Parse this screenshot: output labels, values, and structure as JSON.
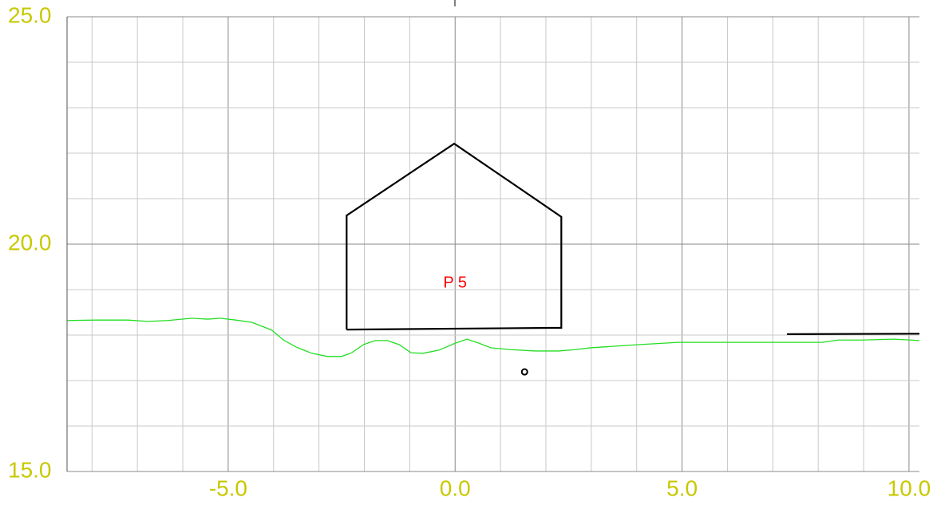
{
  "chart_data": {
    "type": "line",
    "xlim": [
      -8.55,
      10.23
    ],
    "ylim": [
      15,
      25
    ],
    "xticks": [
      {
        "value": -5,
        "label": "-5.0"
      },
      {
        "value": 0,
        "label": "0.0"
      },
      {
        "value": 5,
        "label": "5.0"
      },
      {
        "value": 10,
        "label": "10.0"
      }
    ],
    "yticks": [
      {
        "value": 15,
        "label": "15.0"
      },
      {
        "value": 20,
        "label": "20.0"
      },
      {
        "value": 25,
        "label": "25.0"
      }
    ],
    "xgrid": [
      -8,
      -7,
      -6,
      -5,
      -4,
      -3,
      -2,
      -1,
      0,
      1,
      2,
      3,
      4,
      5,
      6,
      7,
      8,
      9,
      10
    ],
    "ygrid": [
      15,
      16,
      17,
      18,
      19,
      20,
      21,
      22,
      23,
      24,
      25
    ],
    "grid": true,
    "series": [
      {
        "color": "#22dd22",
        "style": "line",
        "x": [
          -8.54,
          -7.91,
          -7.21,
          -6.77,
          -6.33,
          -5.8,
          -5.45,
          -5.18,
          -4.83,
          -4.48,
          -4.04,
          -3.78,
          -3.51,
          -3.16,
          -2.81,
          -2.5,
          -2.28,
          -2.02,
          -1.76,
          -1.49,
          -1.23,
          -0.97,
          -0.7,
          -0.35,
          0,
          0.26,
          0.53,
          0.79,
          1.23,
          1.76,
          2.28,
          2.64,
          2.99,
          4.04,
          4.92,
          6.68,
          8.08,
          8.44,
          8.96,
          9.67,
          10.23
        ],
        "values": [
          18.32,
          18.33,
          18.33,
          18.3,
          18.32,
          18.37,
          18.35,
          18.37,
          18.33,
          18.28,
          18.11,
          17.89,
          17.74,
          17.6,
          17.53,
          17.53,
          17.61,
          17.79,
          17.88,
          17.88,
          17.79,
          17.61,
          17.6,
          17.67,
          17.82,
          17.91,
          17.82,
          17.72,
          17.68,
          17.65,
          17.65,
          17.68,
          17.72,
          17.79,
          17.84,
          17.84,
          17.84,
          17.89,
          17.89,
          17.91,
          17.88
        ]
      },
      {
        "color": "#000000",
        "style": "line",
        "x": [
          -2.39,
          -2.39,
          -0.02,
          2.34,
          2.34,
          -2.39
        ],
        "values": [
          18.12,
          20.63,
          22.21,
          20.6,
          18.16,
          18.12
        ]
      },
      {
        "color": "#000000",
        "style": "line",
        "x": [
          7.31,
          10.23
        ],
        "values": [
          18.02,
          18.03
        ]
      },
      {
        "color": "#000000",
        "style": "point",
        "x": [
          1.53
        ],
        "values": [
          17.19
        ]
      }
    ],
    "annotations": [
      {
        "text": "P 5",
        "x": 0,
        "y": 19.14,
        "color": "#ff0000"
      }
    ]
  }
}
